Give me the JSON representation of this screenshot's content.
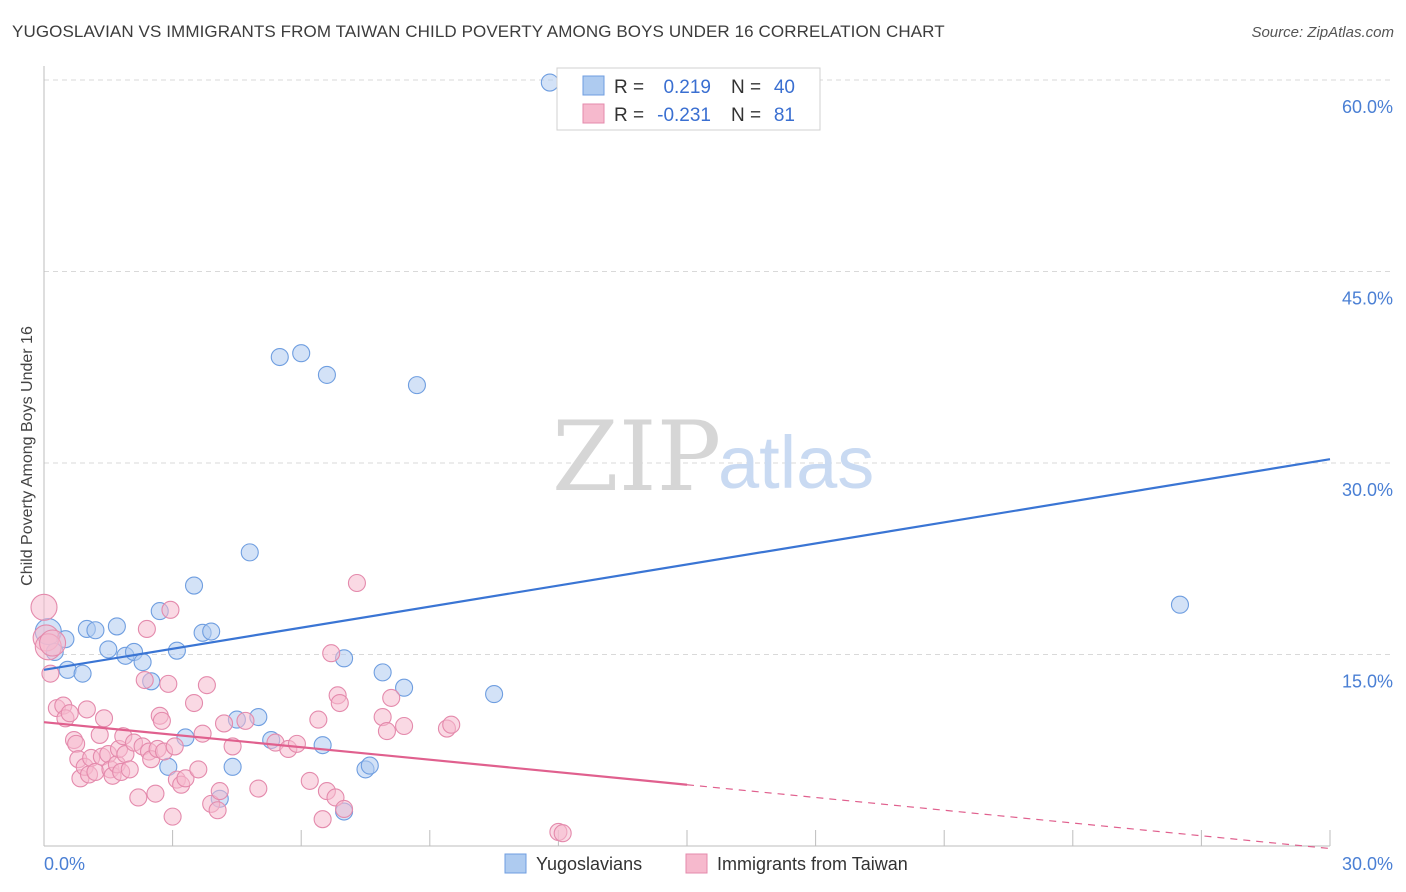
{
  "title": "YUGOSLAVIAN VS IMMIGRANTS FROM TAIWAN CHILD POVERTY AMONG BOYS UNDER 16 CORRELATION CHART",
  "source": "Source: ZipAtlas.com",
  "watermark": {
    "zip": "ZIP",
    "atlas": "atlas"
  },
  "colors": {
    "blue": "#3a75d4",
    "blue_fill": "#aecbf0",
    "pink": "#e0608e",
    "pink_fill": "#f6b9cd",
    "tick": "#4a7fd4",
    "grid": "#d9d9d9"
  },
  "stats": {
    "r_label": "R =",
    "n_label": "N =",
    "rows": [
      {
        "series": "Yugoslavians",
        "r": "0.219",
        "n": "40"
      },
      {
        "series": "Immigrants from Taiwan",
        "r": "-0.231",
        "n": "81"
      }
    ]
  },
  "chart_data": {
    "type": "scatter",
    "title": "YUGOSLAVIAN VS IMMIGRANTS FROM TAIWAN CHILD POVERTY AMONG BOYS UNDER 16 CORRELATION CHART",
    "xlabel": "",
    "ylabel": "Child Poverty Among Boys Under 16",
    "xlim": [
      0,
      30
    ],
    "ylim": [
      0,
      60
    ],
    "x_tick_labels": [
      "0.0%",
      "30.0%"
    ],
    "y_ticks": [
      15,
      30,
      45,
      60
    ],
    "y_tick_labels": [
      "15.0%",
      "30.0%",
      "45.0%",
      "60.0%"
    ],
    "grid": true,
    "legend_position": "bottom",
    "series": [
      {
        "name": "Yugoslavians",
        "color": "#3a75d4",
        "points": [
          [
            0.1,
            16.8
          ],
          [
            0.25,
            15.2
          ],
          [
            0.5,
            16.2
          ],
          [
            0.55,
            13.8
          ],
          [
            0.9,
            13.5
          ],
          [
            1.0,
            17.0
          ],
          [
            1.2,
            16.9
          ],
          [
            1.5,
            15.4
          ],
          [
            1.7,
            17.2
          ],
          [
            1.9,
            14.9
          ],
          [
            2.1,
            15.2
          ],
          [
            2.3,
            14.4
          ],
          [
            2.5,
            12.9
          ],
          [
            2.7,
            18.4
          ],
          [
            2.9,
            6.2
          ],
          [
            3.1,
            15.3
          ],
          [
            3.3,
            8.5
          ],
          [
            3.5,
            20.4
          ],
          [
            3.7,
            16.7
          ],
          [
            3.9,
            16.8
          ],
          [
            4.1,
            3.7
          ],
          [
            4.4,
            6.2
          ],
          [
            4.5,
            9.9
          ],
          [
            4.8,
            23.0
          ],
          [
            5.0,
            10.1
          ],
          [
            5.3,
            8.3
          ],
          [
            5.5,
            38.3
          ],
          [
            6.0,
            38.6
          ],
          [
            6.5,
            7.9
          ],
          [
            6.6,
            36.9
          ],
          [
            7.0,
            14.7
          ],
          [
            7.0,
            2.7
          ],
          [
            7.5,
            6.0
          ],
          [
            7.6,
            6.3
          ],
          [
            7.9,
            13.6
          ],
          [
            8.4,
            12.4
          ],
          [
            8.7,
            36.1
          ],
          [
            10.5,
            11.9
          ],
          [
            11.8,
            59.8
          ],
          [
            26.5,
            18.9
          ]
        ],
        "trend": {
          "x0": 0,
          "y0": 13.8,
          "x1": 30,
          "y1": 30.3
        }
      },
      {
        "name": "Immigrants from Taiwan",
        "color": "#e0608e",
        "points": [
          [
            0.0,
            18.7
          ],
          [
            0.05,
            16.3
          ],
          [
            0.1,
            15.6
          ],
          [
            0.15,
            13.5
          ],
          [
            0.3,
            10.8
          ],
          [
            0.45,
            11.0
          ],
          [
            0.5,
            10.0
          ],
          [
            0.6,
            10.4
          ],
          [
            0.7,
            8.3
          ],
          [
            0.75,
            8.0
          ],
          [
            0.8,
            6.8
          ],
          [
            0.85,
            5.3
          ],
          [
            0.95,
            6.2
          ],
          [
            1.0,
            10.7
          ],
          [
            1.05,
            5.6
          ],
          [
            1.1,
            6.9
          ],
          [
            1.2,
            5.8
          ],
          [
            1.3,
            8.7
          ],
          [
            1.35,
            7.0
          ],
          [
            1.4,
            10.0
          ],
          [
            1.5,
            7.2
          ],
          [
            1.55,
            6.0
          ],
          [
            1.6,
            5.5
          ],
          [
            1.7,
            6.4
          ],
          [
            1.75,
            7.6
          ],
          [
            1.8,
            5.8
          ],
          [
            1.85,
            8.6
          ],
          [
            1.9,
            7.2
          ],
          [
            2.0,
            6.0
          ],
          [
            2.1,
            8.1
          ],
          [
            2.2,
            3.8
          ],
          [
            2.3,
            7.8
          ],
          [
            2.35,
            13.0
          ],
          [
            2.4,
            17.0
          ],
          [
            2.45,
            7.4
          ],
          [
            2.5,
            6.8
          ],
          [
            2.6,
            4.1
          ],
          [
            2.65,
            7.6
          ],
          [
            2.7,
            10.2
          ],
          [
            2.75,
            9.8
          ],
          [
            2.8,
            7.4
          ],
          [
            2.9,
            12.7
          ],
          [
            2.95,
            18.5
          ],
          [
            3.0,
            2.3
          ],
          [
            3.05,
            7.8
          ],
          [
            3.1,
            5.2
          ],
          [
            3.2,
            4.8
          ],
          [
            3.3,
            5.3
          ],
          [
            3.5,
            11.2
          ],
          [
            3.6,
            6.0
          ],
          [
            3.7,
            8.8
          ],
          [
            3.8,
            12.6
          ],
          [
            3.9,
            3.3
          ],
          [
            4.05,
            2.8
          ],
          [
            4.1,
            4.3
          ],
          [
            4.2,
            9.6
          ],
          [
            4.4,
            7.8
          ],
          [
            4.7,
            9.8
          ],
          [
            5.0,
            4.5
          ],
          [
            5.4,
            8.1
          ],
          [
            5.7,
            7.6
          ],
          [
            5.9,
            8.0
          ],
          [
            6.2,
            5.1
          ],
          [
            6.4,
            9.9
          ],
          [
            6.5,
            2.1
          ],
          [
            6.6,
            4.3
          ],
          [
            6.7,
            15.1
          ],
          [
            6.8,
            3.8
          ],
          [
            6.85,
            11.8
          ],
          [
            6.9,
            11.2
          ],
          [
            7.0,
            2.9
          ],
          [
            7.3,
            20.6
          ],
          [
            7.9,
            10.1
          ],
          [
            8.0,
            9.0
          ],
          [
            8.1,
            11.6
          ],
          [
            8.4,
            9.4
          ],
          [
            9.4,
            9.2
          ],
          [
            9.5,
            9.5
          ],
          [
            12.0,
            1.1
          ],
          [
            12.1,
            1.0
          ],
          [
            0.2,
            15.9
          ]
        ],
        "trend": {
          "x0": 0,
          "y0": 9.7,
          "x1": 15,
          "y1": 4.8
        },
        "trend_dashed": {
          "x0": 15,
          "y0": 4.8,
          "x1": 30,
          "y1": -0.2
        }
      }
    ]
  }
}
